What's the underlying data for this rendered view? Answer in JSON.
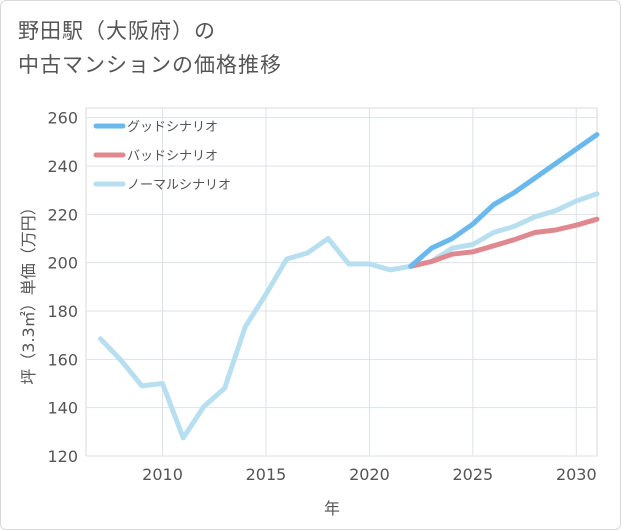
{
  "title": {
    "line1": "野田駅（大阪府）の",
    "line2": "中古マンションの価格推移"
  },
  "chart_data": {
    "type": "line",
    "title": "野田駅（大阪府）の中古マンションの価格推移",
    "xlabel": "年",
    "ylabel": "坪（3.3㎡）単価（万円）",
    "xlim": [
      2006.3,
      2031
    ],
    "ylim": [
      120,
      264
    ],
    "xticks": [
      2010,
      2015,
      2020,
      2025,
      2030
    ],
    "yticks": [
      120,
      140,
      160,
      180,
      200,
      220,
      240,
      260
    ],
    "grid": true,
    "legend_position": "top-left",
    "series": [
      {
        "name": "グッドシナリオ",
        "color": "#6ab9ee",
        "x": [
          2022,
          2023,
          2024,
          2025,
          2026,
          2027,
          2028,
          2029,
          2030,
          2031
        ],
        "y": [
          198.5,
          206,
          210,
          216,
          224,
          229,
          235,
          241,
          247,
          253
        ]
      },
      {
        "name": "バッドシナリオ",
        "color": "#e0888f",
        "x": [
          2022,
          2023,
          2024,
          2025,
          2026,
          2027,
          2028,
          2029,
          2030,
          2031
        ],
        "y": [
          198.5,
          200.5,
          203.5,
          204.5,
          207,
          209.5,
          212.5,
          213.5,
          215.5,
          218
        ]
      },
      {
        "name": "ノーマルシナリオ",
        "color": "#b8dff0",
        "x": [
          2007,
          2008,
          2009,
          2010,
          2011,
          2012,
          2013,
          2014,
          2015,
          2016,
          2017,
          2018,
          2019,
          2020,
          2021,
          2022,
          2023,
          2024,
          2025,
          2026,
          2027,
          2028,
          2029,
          2030,
          2031
        ],
        "y": [
          168.5,
          159.5,
          149,
          150,
          127.5,
          140.5,
          148,
          173.5,
          187,
          201.5,
          204,
          210,
          199.5,
          199.5,
          197,
          198.5,
          200.5,
          206,
          207.5,
          212.5,
          215,
          219,
          221.5,
          225.5,
          228.5
        ]
      }
    ]
  }
}
